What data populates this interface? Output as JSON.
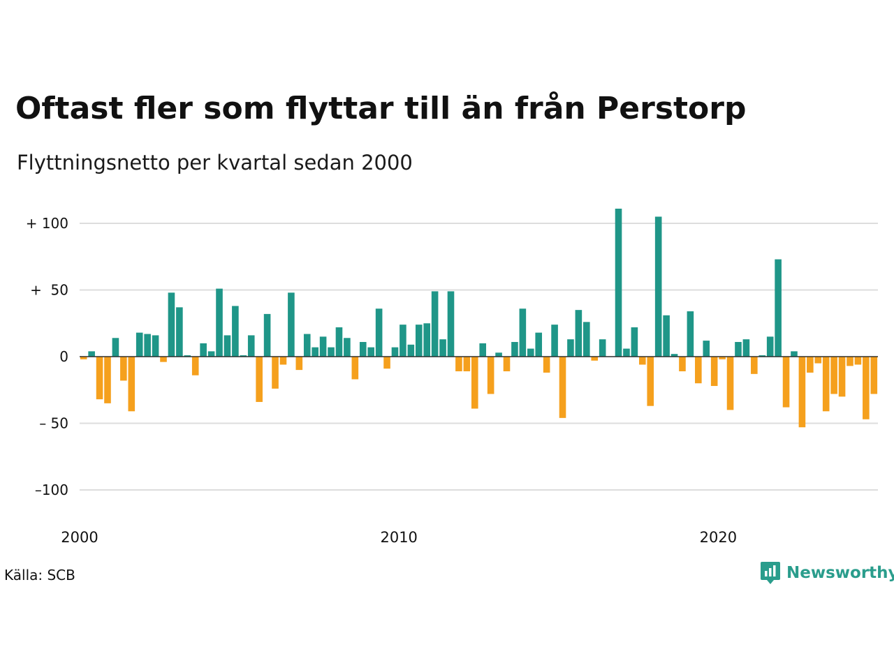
{
  "title": "Oftast fler som flyttar till än från Perstorp",
  "subtitle": "Flyttningsnetto per kvartal sedan 2000",
  "source": "Källa: SCB",
  "brand": {
    "name": "Newsworthy",
    "icon": "newsworthy-logo-icon"
  },
  "colors": {
    "positive": "#1f9688",
    "negative": "#f5a01d",
    "grid": "#dddddd",
    "zero": "#222222"
  },
  "chart_data": {
    "type": "bar",
    "x_start": "2000 Q1",
    "x_ticks": [
      "2000",
      "2010",
      "2020"
    ],
    "y_ticks": [
      "+ 100",
      "+  50",
      "0",
      "– 50",
      "–100"
    ],
    "y_tick_values": [
      100,
      50,
      0,
      -50,
      -100
    ],
    "ylim": [
      -115,
      112
    ],
    "grid": true,
    "values": [
      -2,
      4,
      -32,
      -35,
      14,
      -18,
      -41,
      18,
      17,
      16,
      -4,
      48,
      37,
      1,
      -14,
      10,
      4,
      51,
      16,
      38,
      1,
      16,
      -34,
      32,
      -24,
      -6,
      48,
      -10,
      17,
      7,
      15,
      7,
      22,
      14,
      -17,
      11,
      7,
      36,
      -9,
      7,
      24,
      9,
      24,
      25,
      49,
      13,
      49,
      -11,
      -11,
      -39,
      10,
      -28,
      3,
      -11,
      11,
      36,
      6,
      18,
      -12,
      24,
      -46,
      13,
      35,
      26,
      -3,
      13,
      0,
      111,
      6,
      22,
      -6,
      -37,
      105,
      31,
      2,
      -11,
      34,
      -20,
      12,
      -22,
      -2,
      -40,
      11,
      13,
      -13,
      1,
      15,
      73,
      -38,
      4,
      -53,
      -12,
      -5,
      -41,
      -28,
      -30,
      -7,
      -6,
      -47,
      -28
    ]
  }
}
